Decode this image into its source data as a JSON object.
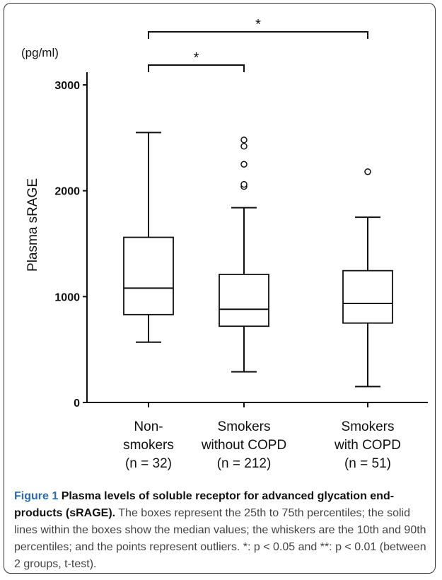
{
  "chart_data": {
    "type": "box",
    "unit_label": "(pg/ml)",
    "ylabel": "Plasma sRAGE",
    "ylim": [
      0,
      3000
    ],
    "yticks": [
      0,
      1000,
      2000,
      3000
    ],
    "ytick_labels": [
      "0",
      "1000",
      "2000",
      "3000"
    ],
    "grid": false,
    "categories": [
      {
        "lines": [
          "Non-",
          "smokers",
          "(n = 32)"
        ]
      },
      {
        "lines": [
          "Smokers",
          "without COPD",
          "(n = 212)"
        ]
      },
      {
        "lines": [
          "Smokers",
          "with COPD",
          "(n = 51)"
        ]
      }
    ],
    "boxes": [
      {
        "p10": 570,
        "q1": 830,
        "median": 1080,
        "q3": 1560,
        "p90": 2550,
        "outliers": []
      },
      {
        "p10": 290,
        "q1": 720,
        "median": 880,
        "q3": 1210,
        "p90": 1840,
        "outliers": [
          2040,
          2060,
          2250,
          2420,
          2480
        ]
      },
      {
        "p10": 150,
        "q1": 750,
        "median": 935,
        "q3": 1245,
        "p90": 1750,
        "outliers": [
          2180
        ]
      }
    ],
    "significance": [
      {
        "from": 0,
        "to": 1,
        "label": "*"
      },
      {
        "from": 0,
        "to": 2,
        "label": "*"
      }
    ]
  },
  "caption": {
    "label": "Figure 1",
    "title": "Plasma levels of soluble receptor for advanced glycation end-products (sRAGE).",
    "text": "The boxes represent the 25th to 75th percentiles; the solid lines within the boxes show the median values; the whiskers are the 10th and 90th percentiles; and the points represent outliers. *: p < 0.05 and **: p < 0.01 (between 2 groups, t-test)."
  }
}
